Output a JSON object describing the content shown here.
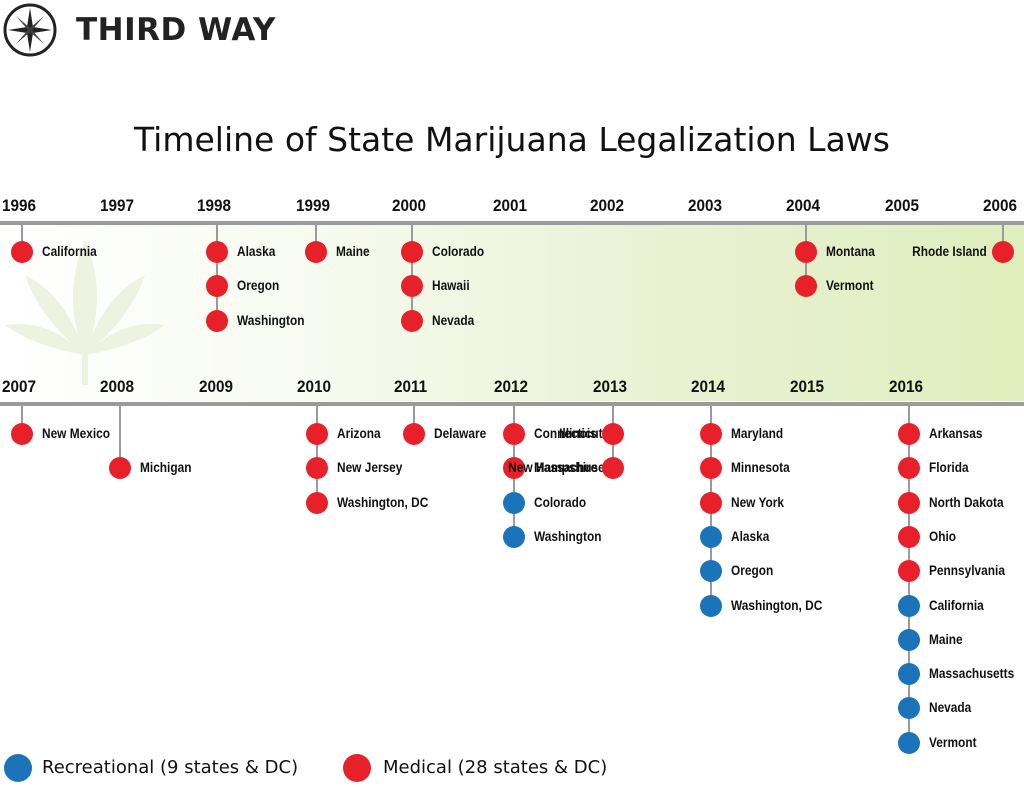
{
  "brand": {
    "name": "THIRD WAY"
  },
  "title": "Timeline of State Marijuana Legalization Laws",
  "colors": {
    "medical": "#e8202a",
    "recreational": "#1b73ba",
    "axis": "#9a9a9a"
  },
  "legend": [
    {
      "key": "recreational",
      "label": "Recreational (9 states & DC)"
    },
    {
      "key": "medical",
      "label": "Medical (28 states & DC)"
    }
  ],
  "rows": [
    {
      "years": [
        "1996",
        "1997",
        "1998",
        "1999",
        "2000",
        "2001",
        "2002",
        "2003",
        "2004",
        "2005",
        "2006"
      ],
      "events": [
        {
          "year": "1996",
          "items": [
            {
              "state": "California",
              "type": "medical"
            }
          ]
        },
        {
          "year": "1998",
          "items": [
            {
              "state": "Alaska",
              "type": "medical"
            },
            {
              "state": "Oregon",
              "type": "medical"
            },
            {
              "state": "Washington",
              "type": "medical"
            }
          ]
        },
        {
          "year": "1999",
          "items": [
            {
              "state": "Maine",
              "type": "medical"
            }
          ]
        },
        {
          "year": "2000",
          "items": [
            {
              "state": "Colorado",
              "type": "medical"
            },
            {
              "state": "Hawaii",
              "type": "medical"
            },
            {
              "state": "Nevada",
              "type": "medical"
            }
          ]
        },
        {
          "year": "2004",
          "items": [
            {
              "state": "Montana",
              "type": "medical"
            },
            {
              "state": "Vermont",
              "type": "medical"
            }
          ]
        },
        {
          "year": "2006",
          "items": [
            {
              "state": "Rhode Island",
              "type": "medical"
            }
          ]
        }
      ]
    },
    {
      "years": [
        "2007",
        "2008",
        "2009",
        "2010",
        "2011",
        "2012",
        "2013",
        "2014",
        "2015",
        "2016"
      ],
      "events": [
        {
          "year": "2007",
          "items": [
            {
              "state": "New Mexico",
              "type": "medical"
            }
          ]
        },
        {
          "year": "2008",
          "items": [
            {
              "state": "Michigan",
              "type": "medical"
            }
          ]
        },
        {
          "year": "2010",
          "items": [
            {
              "state": "Arizona",
              "type": "medical"
            },
            {
              "state": "New Jersey",
              "type": "medical"
            },
            {
              "state": "Washington, DC",
              "type": "medical"
            }
          ]
        },
        {
          "year": "2011",
          "items": [
            {
              "state": "Delaware",
              "type": "medical"
            }
          ]
        },
        {
          "year": "2012",
          "items": [
            {
              "state": "Connecticut",
              "type": "medical"
            },
            {
              "state": "Massachusetts",
              "type": "medical"
            },
            {
              "state": "Colorado",
              "type": "recreational"
            },
            {
              "state": "Washington",
              "type": "recreational"
            }
          ]
        },
        {
          "year": "2013",
          "items": [
            {
              "state": "Illinois",
              "type": "medical"
            },
            {
              "state": "New Hampshire",
              "type": "medical"
            }
          ]
        },
        {
          "year": "2014",
          "items": [
            {
              "state": "Maryland",
              "type": "medical"
            },
            {
              "state": "Minnesota",
              "type": "medical"
            },
            {
              "state": "New York",
              "type": "medical"
            },
            {
              "state": "Alaska",
              "type": "recreational"
            },
            {
              "state": "Oregon",
              "type": "recreational"
            },
            {
              "state": "Washington, DC",
              "type": "recreational"
            }
          ]
        },
        {
          "year": "2016",
          "items": [
            {
              "state": "Arkansas",
              "type": "medical"
            },
            {
              "state": "Florida",
              "type": "medical"
            },
            {
              "state": "North Dakota",
              "type": "medical"
            },
            {
              "state": "Ohio",
              "type": "medical"
            },
            {
              "state": "Pennsylvania",
              "type": "medical"
            },
            {
              "state": "California",
              "type": "recreational"
            },
            {
              "state": "Maine",
              "type": "recreational"
            },
            {
              "state": "Massachusetts",
              "type": "recreational"
            },
            {
              "state": "Nevada",
              "type": "recreational"
            },
            {
              "state": "Vermont",
              "type": "recreational"
            }
          ]
        }
      ]
    }
  ]
}
